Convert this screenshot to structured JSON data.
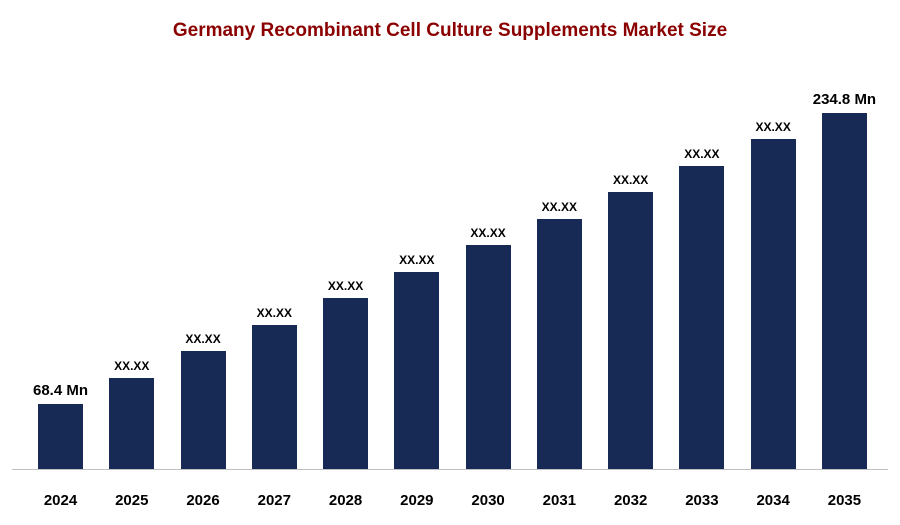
{
  "chart_data": {
    "type": "bar",
    "title": "Germany Recombinant Cell Culture Supplements Market Size",
    "unit": "Mn",
    "categories": [
      "2024",
      "2025",
      "2026",
      "2027",
      "2028",
      "2029",
      "2030",
      "2031",
      "2032",
      "2033",
      "2034",
      "2035"
    ],
    "values": [
      68.4,
      83.5,
      98.7,
      113.8,
      128.9,
      144.1,
      159.2,
      174.3,
      189.5,
      204.6,
      219.7,
      234.8
    ],
    "value_labels": [
      "68.4 Mn",
      "XX.XX",
      "XX.XX",
      "XX.XX",
      "XX.XX",
      "XX.XX",
      "XX.XX",
      "XX.XX",
      "XX.XX",
      "XX.XX",
      "XX.XX",
      "234.8 Mn"
    ],
    "first_value_label": "68.4 Mn",
    "last_value_label": "234.8 Mn",
    "xlabel": "",
    "ylabel": "",
    "ylim": [
      0,
      250
    ],
    "grid": false,
    "legend": "none",
    "bar_color": "#172a56",
    "title_color": "#8b0000",
    "axis_line_color": "#bfbfbf"
  }
}
